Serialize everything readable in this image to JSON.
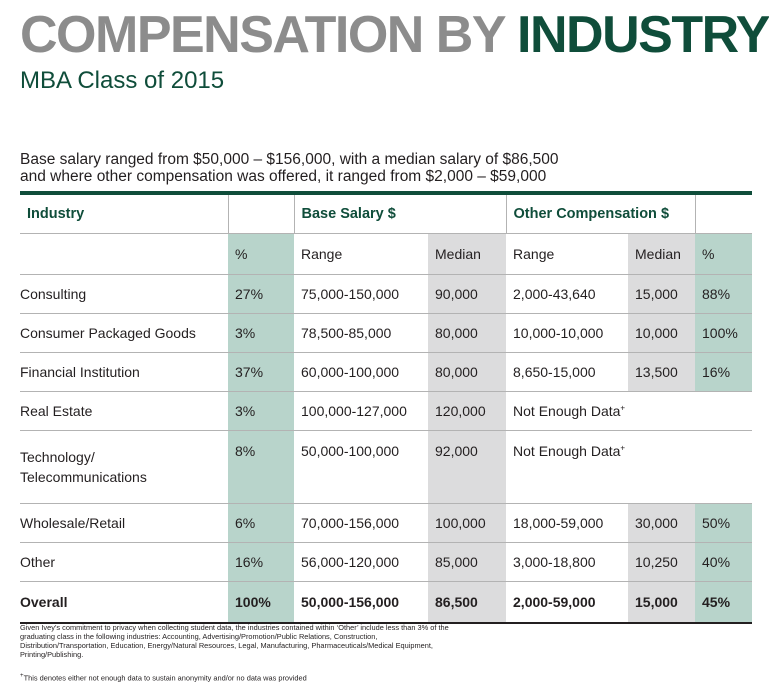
{
  "header": {
    "title_part1": "COMPENSATION BY",
    "title_part2": "INDUSTRY",
    "subtitle": "MBA Class of 2015"
  },
  "intro": {
    "line1": "Base salary ranged from $50,000 – $156,000, with a median salary of $86,500",
    "line2": "and where other compensation was offered, it ranged from $2,000 – $59,000"
  },
  "table": {
    "group_headers": {
      "industry": "Industry",
      "base_salary": "Base Salary $",
      "other_comp": "Other Compensation $"
    },
    "sub_headers": {
      "pct": "%",
      "base_range": "Range",
      "base_median": "Median",
      "other_range": "Range",
      "other_median": "Median",
      "other_pct": "%"
    },
    "rows": [
      {
        "industry": "Consulting",
        "pct": "27%",
        "base_range": "75,000-150,000",
        "base_median": "90,000",
        "other_range": "2,000-43,640",
        "other_median": "15,000",
        "other_pct": "88%"
      },
      {
        "industry": "Consumer Packaged Goods",
        "pct": "3%",
        "base_range": "78,500-85,000",
        "base_median": "80,000",
        "other_range": "10,000-10,000",
        "other_median": "10,000",
        "other_pct": "100%"
      },
      {
        "industry": "Financial Institution",
        "pct": "37%",
        "base_range": "60,000-100,000",
        "base_median": "80,000",
        "other_range": "8,650-15,000",
        "other_median": "13,500",
        "other_pct": "16%"
      },
      {
        "industry": "Real Estate",
        "pct": "3%",
        "base_range": "100,000-127,000",
        "base_median": "120,000",
        "other_text": "Not Enough Data",
        "other_mark": "+"
      },
      {
        "industry_line1": "Technology/",
        "industry_line2": "Telecommunications",
        "pct": "8%",
        "base_range": "50,000-100,000",
        "base_median": "92,000",
        "other_text": "Not Enough Data",
        "other_mark": "+"
      },
      {
        "industry": "Wholesale/Retail",
        "pct": "6%",
        "base_range": "70,000-156,000",
        "base_median": "100,000",
        "other_range": "18,000-59,000",
        "other_median": "30,000",
        "other_pct": "50%"
      },
      {
        "industry": "Other",
        "pct": "16%",
        "base_range": "56,000-120,000",
        "base_median": "85,000",
        "other_range": "3,000-18,800",
        "other_median": "10,250",
        "other_pct": "40%"
      }
    ],
    "overall": {
      "industry": "Overall",
      "pct": "100%",
      "base_range": "50,000-156,000",
      "base_median": "86,500",
      "other_range": "2,000-59,000",
      "other_median": "15,000",
      "other_pct": "45%"
    }
  },
  "footnotes": {
    "privacy": "Given Ivey’s commitment to privacy when collecting student data, the industries contained within ‘Other’ include less than 3% of the graduating class in the following industries: Accounting, Advertising/Promotion/Public Relations, Construction, Distribution/Transportation, Education, Energy/Natural Resources, Legal, Manufacturing, Pharmaceuticals/Medical Equipment, Printing/Publishing.",
    "plus_mark": "+",
    "no_data": "This denotes either not enough data to sustain anonymity and/or no data was provided"
  },
  "colors": {
    "title_gray": "#8c8c8c",
    "brand_green": "#0f4d3a",
    "column_green": "#b8d4cb",
    "column_gray": "#dcdcdd"
  }
}
